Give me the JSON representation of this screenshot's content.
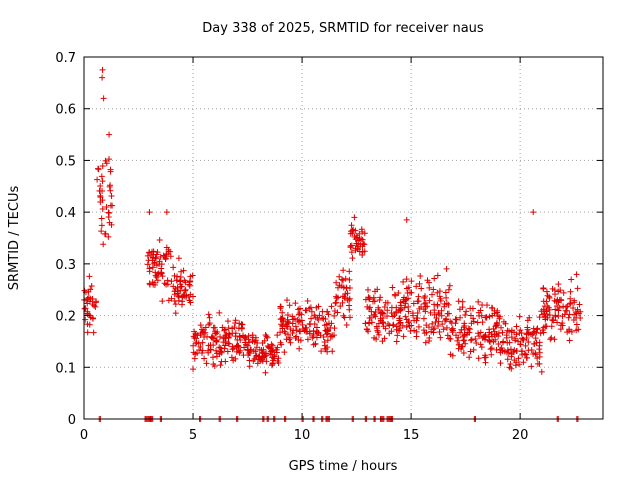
{
  "chart_data": {
    "type": "scatter",
    "title": "Day 338 of 2025, SRMTID for receiver naus",
    "xlabel": "GPS time / hours",
    "ylabel": "SRMTID / TECUs",
    "xlim": [
      0,
      23.8
    ],
    "ylim": [
      0,
      0.7
    ],
    "grid": true,
    "marker": "+",
    "color": "#e00000",
    "x_ticks": [
      0,
      5,
      10,
      15,
      20
    ],
    "x_tick_labels": [
      "0",
      "5",
      "10",
      "15",
      "20"
    ],
    "y_ticks": [
      0,
      0.1,
      0.2,
      0.3,
      0.4,
      0.5,
      0.6,
      0.7
    ],
    "y_tick_labels": [
      "0",
      "0.1",
      "0.2",
      "0.3",
      "0.4",
      "0.5",
      "0.6",
      "0.7"
    ],
    "series": [
      {
        "name": "SRMTID",
        "segments": [
          {
            "x_start": 0.0,
            "x_end": 0.6,
            "level": 0.22,
            "spread": 0.07
          },
          {
            "x_start": 0.6,
            "x_end": 1.3,
            "level": 0.42,
            "spread": 0.12
          },
          {
            "x_start": 2.9,
            "x_end": 4.0,
            "level": 0.29,
            "spread": 0.06
          },
          {
            "x_start": 4.0,
            "x_end": 5.0,
            "level": 0.25,
            "spread": 0.06
          },
          {
            "x_start": 5.0,
            "x_end": 7.5,
            "level": 0.15,
            "spread": 0.05
          },
          {
            "x_start": 7.5,
            "x_end": 9.0,
            "level": 0.13,
            "spread": 0.04
          },
          {
            "x_start": 9.0,
            "x_end": 11.5,
            "level": 0.18,
            "spread": 0.06
          },
          {
            "x_start": 11.5,
            "x_end": 12.2,
            "level": 0.24,
            "spread": 0.06
          },
          {
            "x_start": 12.2,
            "x_end": 12.9,
            "level": 0.34,
            "spread": 0.04
          },
          {
            "x_start": 12.9,
            "x_end": 14.5,
            "level": 0.19,
            "spread": 0.07
          },
          {
            "x_start": 14.5,
            "x_end": 16.8,
            "level": 0.21,
            "spread": 0.08
          },
          {
            "x_start": 16.8,
            "x_end": 19.0,
            "level": 0.17,
            "spread": 0.07
          },
          {
            "x_start": 19.0,
            "x_end": 21.0,
            "level": 0.15,
            "spread": 0.06
          },
          {
            "x_start": 21.0,
            "x_end": 22.8,
            "level": 0.21,
            "spread": 0.07
          }
        ],
        "peaks": [
          {
            "x": 0.85,
            "y": 0.675
          },
          {
            "x": 0.83,
            "y": 0.66
          },
          {
            "x": 0.9,
            "y": 0.62
          },
          {
            "x": 1.15,
            "y": 0.55
          },
          {
            "x": 3.0,
            "y": 0.4
          },
          {
            "x": 3.8,
            "y": 0.4
          },
          {
            "x": 14.8,
            "y": 0.385
          },
          {
            "x": 20.6,
            "y": 0.4
          },
          {
            "x": 12.4,
            "y": 0.39
          }
        ],
        "zero_points_x": [
          0.7,
          2.8,
          2.9,
          3.0,
          3.1,
          3.5,
          5.3,
          6.2,
          7.0,
          8.2,
          8.4,
          8.7,
          9.2,
          10.0,
          10.5,
          10.9,
          11.1,
          11.2,
          12.3,
          12.9,
          13.3,
          13.6,
          13.7,
          13.9,
          14.0,
          14.1,
          17.9,
          21.7,
          22.6
        ]
      }
    ]
  }
}
